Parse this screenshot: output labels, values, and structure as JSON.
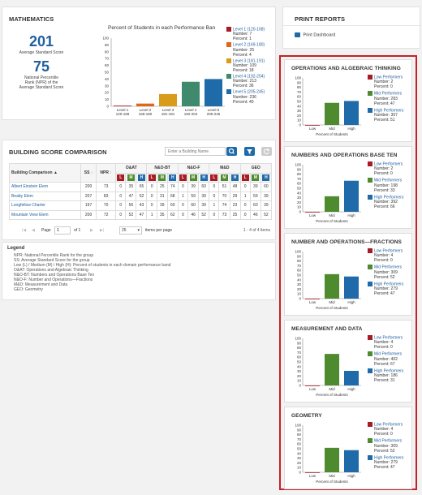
{
  "math": {
    "title": "MATHEMATICS",
    "avg_score": "201",
    "avg_score_label": "Average Standard Score",
    "npr": "75",
    "npr_label_1": "National Percentile",
    "npr_label_2": "Rank (NPR) of the",
    "npr_label_3": "Average Standard Score"
  },
  "chart_data": [
    {
      "type": "bar",
      "title": "Percent of Students in each Performance Ban",
      "categories": [
        "Level 1\n120-168",
        "Level 2\n169-180",
        "Level 3\n181-191",
        "Level 4\n192-204",
        "Level 5\n205-245"
      ],
      "values": [
        1,
        4,
        18,
        36,
        40
      ],
      "ylim": [
        0,
        100
      ],
      "yticks": [
        0,
        10,
        20,
        30,
        40,
        50,
        60,
        70,
        80,
        90,
        100
      ],
      "colors": [
        "#a61c24",
        "#e0661a",
        "#d89b1c",
        "#3f8a6c",
        "#1f6aa8"
      ],
      "legend": [
        {
          "label": "Level 1 (120-168)",
          "number": "Number: 7",
          "percent": "Percent: 1"
        },
        {
          "label": "Level 2 (169-180)",
          "number": "Number: 25",
          "percent": "Percent: 4"
        },
        {
          "label": "Level 3 (181-191)",
          "number": "Number: 109",
          "percent": "Percent: 18"
        },
        {
          "label": "Level 4 (192-204)",
          "number": "Number: 213",
          "percent": "Percent: 36"
        },
        {
          "label": "Level 5 (205-245)",
          "number": "Number: 236",
          "percent": "Percent: 40"
        }
      ]
    },
    {
      "type": "bar",
      "title": "OPERATIONS AND ALGEBRAIC THINKING",
      "categories": [
        "Low",
        "Mid",
        "High"
      ],
      "values": [
        0,
        47,
        51
      ],
      "xlabel": "Percent of Students",
      "ylim": [
        0,
        100
      ],
      "legend": [
        {
          "label": "Low Performers",
          "number": "Number: 2",
          "percent": "Percent: 0"
        },
        {
          "label": "Mid Performers",
          "number": "Number: 283",
          "percent": "Percent: 47"
        },
        {
          "label": "High Performers",
          "number": "Number: 307",
          "percent": "Percent: 51"
        }
      ]
    },
    {
      "type": "bar",
      "title": "NUMBERS AND OPERATIONS BASE TEN",
      "categories": [
        "Low",
        "Mid",
        "High"
      ],
      "values": [
        0,
        33,
        66
      ],
      "xlabel": "Percent of Students",
      "ylim": [
        0,
        100
      ],
      "legend": [
        {
          "label": "Low Performers",
          "number": "Number: 2",
          "percent": "Percent: 0"
        },
        {
          "label": "Mid Performers",
          "number": "Number: 198",
          "percent": "Percent: 33"
        },
        {
          "label": "High Performers",
          "number": "Number: 392",
          "percent": "Percent: 66"
        }
      ]
    },
    {
      "type": "bar",
      "title": "NUMBER AND OPERATIONS—FRACTIONS",
      "categories": [
        "Low",
        "Mid",
        "High"
      ],
      "values": [
        0,
        52,
        47
      ],
      "xlabel": "Percent of Students",
      "ylim": [
        0,
        100
      ],
      "legend": [
        {
          "label": "Low Performers",
          "number": "Number: 4",
          "percent": "Percent: 0"
        },
        {
          "label": "Mid Performers",
          "number": "Number: 309",
          "percent": "Percent: 52"
        },
        {
          "label": "High Performers",
          "number": "Number: 279",
          "percent": "Percent: 47"
        }
      ]
    },
    {
      "type": "bar",
      "title": "MEASUREMENT AND DATA",
      "categories": [
        "Low",
        "Mid",
        "High"
      ],
      "values": [
        0,
        67,
        31
      ],
      "xlabel": "Percent of Students",
      "ylim": [
        0,
        100
      ],
      "legend": [
        {
          "label": "Low Performers",
          "number": "Number: 4",
          "percent": "Percent: 0"
        },
        {
          "label": "Mid Performers",
          "number": "Number: 402",
          "percent": "Percent: 67"
        },
        {
          "label": "High Performers",
          "number": "Number: 186",
          "percent": "Percent: 31"
        }
      ]
    },
    {
      "type": "bar",
      "title": "GEOMETRY",
      "categories": [
        "Low",
        "Mid",
        "High"
      ],
      "values": [
        0,
        52,
        47
      ],
      "xlabel": "Percent of Students",
      "ylim": [
        0,
        100
      ],
      "legend": [
        {
          "label": "Low Performers",
          "number": "Number: 4",
          "percent": "Percent: 0"
        },
        {
          "label": "Mid Performers",
          "number": "Number: 309",
          "percent": "Percent: 52"
        },
        {
          "label": "High Performers",
          "number": "Number: 279",
          "percent": "Percent: 47"
        }
      ]
    }
  ],
  "building": {
    "title": "BUILDING SCORE COMPARISON",
    "search_placeholder": "Enter a Building Name",
    "headers": {
      "name": "Building Comparison",
      "ss": "SS",
      "npr": "NPR",
      "oat": "O&AT",
      "nbt": "N&O-BT",
      "nof": "N&O-F",
      "md": "M&D",
      "geo": "GEO"
    },
    "lmh": [
      "L",
      "M",
      "H"
    ],
    "rows": [
      {
        "name": "Albert Einstein Elem",
        "cells": [
          "200",
          "73",
          "0",
          "35",
          "65",
          "0",
          "25",
          "74",
          "0",
          "39",
          "60",
          "0",
          "51",
          "48",
          "0",
          "39",
          "60"
        ]
      },
      {
        "name": "Beatty Elem",
        "cells": [
          "207",
          "83",
          "0",
          "47",
          "52",
          "0",
          "31",
          "68",
          "1",
          "59",
          "39",
          "0",
          "70",
          "29",
          "1",
          "59",
          "39"
        ]
      },
      {
        "name": "Longfellow Charter",
        "cells": [
          "197",
          "70",
          "0",
          "56",
          "43",
          "0",
          "39",
          "60",
          "0",
          "60",
          "39",
          "1",
          "74",
          "23",
          "0",
          "60",
          "39"
        ]
      },
      {
        "name": "Mountain View Elem",
        "cells": [
          "200",
          "72",
          "0",
          "52",
          "47",
          "1",
          "35",
          "62",
          "0",
          "46",
          "52",
          "0",
          "73",
          "25",
          "0",
          "46",
          "52"
        ]
      }
    ],
    "page_label": "Page",
    "page_value": "1",
    "of_label": "of 1",
    "per_page": "25",
    "items_per_page": "items per page",
    "range": "1 - 4 of 4 items"
  },
  "legend": {
    "title": "Legend",
    "lines": [
      "NPR: National Percentile Rank for the group",
      "SS: Average Standard Score for the group",
      "Low (L) / Medium (M) / High (H): Percent of students in each domain performance band",
      "O&AT: Operations and Algebraic Thinking",
      "N&O-BT: Numbers and Operations Base Ten",
      "N&O-F: Number and Operations—Fractions",
      "M&D: Measurement and Data",
      "GEO: Geometry"
    ]
  },
  "print": {
    "title": "PRINT REPORTS",
    "dashboard": "Print Dashboard"
  }
}
